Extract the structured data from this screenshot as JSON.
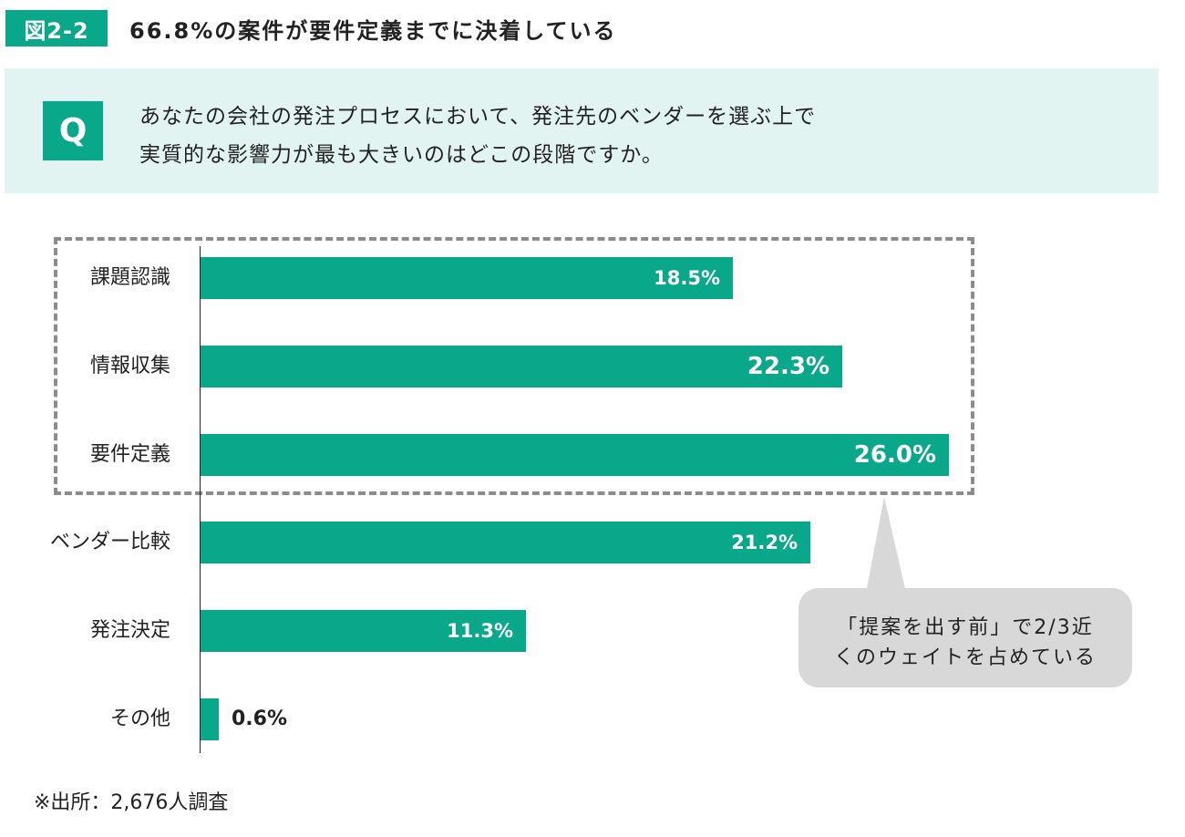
{
  "figure": {
    "number": "図2-2",
    "title": "66.8%の案件が要件定義までに決着している"
  },
  "question": {
    "mark": "Q",
    "line1": "あなたの会社の発注プロセスにおいて、発注先のベンダーを選ぶ上で",
    "line2": "実質的な影響力が最も大きいのはどこの段階ですか。"
  },
  "callout": {
    "line1": "「提案を出す前」で2/3近",
    "line2": "くのウェイトを占めている"
  },
  "source": "※出所：2,676人調査",
  "colors": {
    "accent": "#0aa88a",
    "panel": "#e1f4f1",
    "callout": "#d8d8d8",
    "dash": "#8c8c8c"
  },
  "chart_data": {
    "type": "bar",
    "orientation": "horizontal",
    "categories": [
      "課題認識",
      "情報収集",
      "要件定義",
      "ベンダー比較",
      "発注決定",
      "その他"
    ],
    "values": [
      18.5,
      22.3,
      26.0,
      21.2,
      11.3,
      0.6
    ],
    "value_labels": [
      "18.5%",
      "22.3%",
      "26.0%",
      "21.2%",
      "11.3%",
      "0.6%"
    ],
    "unit": "%",
    "highlighted_categories": [
      "課題認識",
      "情報収集",
      "要件定義"
    ],
    "grid": false,
    "legend": "none"
  }
}
